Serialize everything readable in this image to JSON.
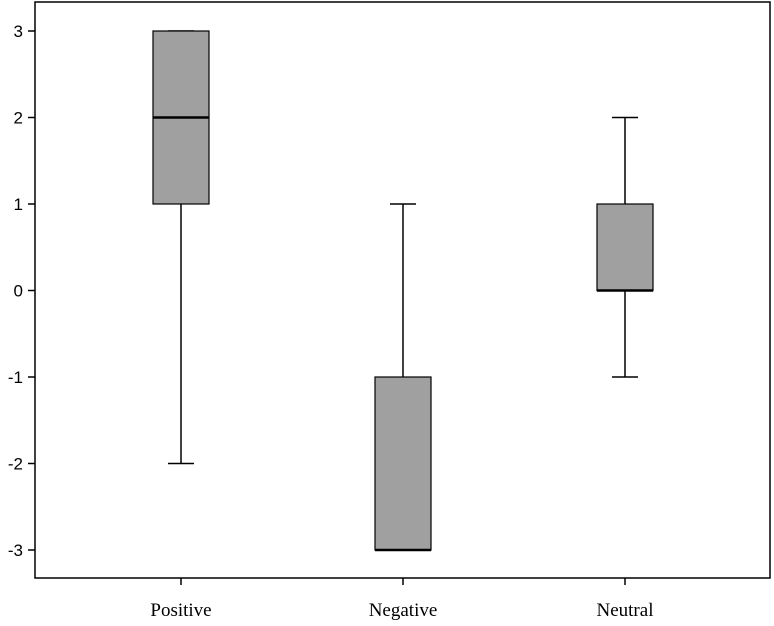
{
  "chart_data": {
    "type": "boxplot",
    "title": "",
    "xlabel": "",
    "ylabel": "",
    "ylim": [
      -3.33,
      3.33
    ],
    "yticks": [
      3,
      2,
      1,
      0,
      -1,
      -2,
      -3
    ],
    "ytick_labels": [
      "3",
      "2",
      "1",
      "0",
      "-1",
      "-2",
      "-3"
    ],
    "grid": false,
    "box_color": "#a0a0a0",
    "line_color": "#000000",
    "categories": [
      "Positive",
      "Negative",
      "Neutral"
    ],
    "boxes": [
      {
        "category": "Positive",
        "whisker_low": -2,
        "q1": 1,
        "median": 2,
        "q3": 3,
        "whisker_high": 3
      },
      {
        "category": "Negative",
        "whisker_low": -3,
        "q1": -3,
        "median": -3,
        "q3": -1,
        "whisker_high": 1
      },
      {
        "category": "Neutral",
        "whisker_low": -1,
        "q1": 0,
        "median": 0,
        "q3": 1,
        "whisker_high": 2
      }
    ]
  }
}
